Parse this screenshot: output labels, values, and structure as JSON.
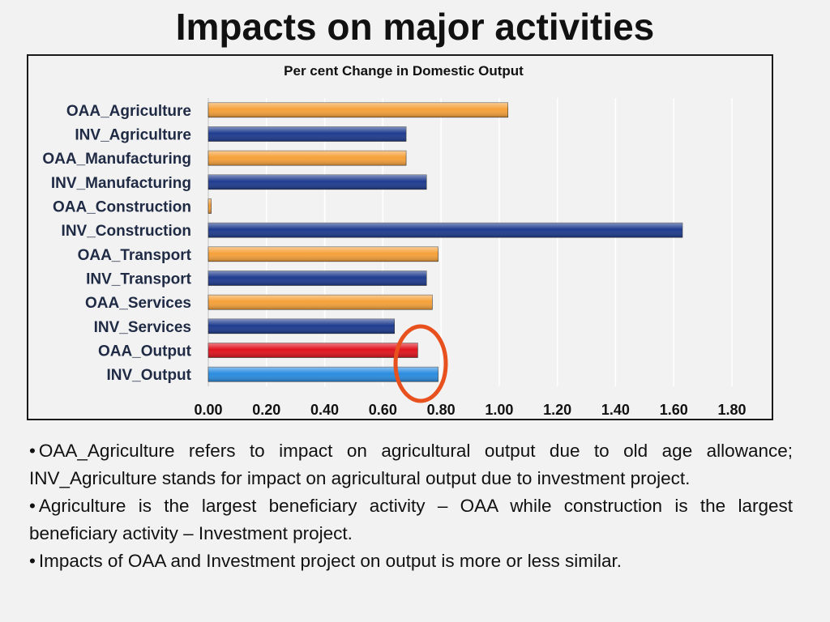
{
  "title": "Impacts on major activities",
  "chart_data": {
    "type": "bar",
    "orientation": "horizontal",
    "title": "Per cent Change in Domestic Output",
    "categories": [
      "OAA_Agriculture",
      "INV_Agriculture",
      "OAA_Manufacturing",
      "INV_Manufacturing",
      "OAA_Construction",
      "INV_Construction",
      "OAA_Transport",
      "INV_Transport",
      "OAA_Services",
      "INV_Services",
      "OAA_Output",
      "INV_Output"
    ],
    "values": [
      1.03,
      0.68,
      0.68,
      0.75,
      0.01,
      1.63,
      0.79,
      0.75,
      0.77,
      0.64,
      0.72,
      0.79
    ],
    "bar_colors": [
      "#f6a13a",
      "#1f3c8f",
      "#f6a13a",
      "#1f3c8f",
      "#f6a13a",
      "#1f3c8f",
      "#f6a13a",
      "#1f3c8f",
      "#f6a13a",
      "#1f3c8f",
      "#e0141e",
      "#2b8de0"
    ],
    "xlim": [
      0,
      1.8
    ],
    "xticks": [
      "0.00",
      "0.20",
      "0.40",
      "0.60",
      "0.80",
      "1.00",
      "1.20",
      "1.40",
      "1.60",
      "1.80"
    ],
    "grid": true,
    "annotation": {
      "shape": "ellipse",
      "color": "#e8501e",
      "near": "OAA_Output / INV_Output bar ends"
    }
  },
  "notes": [
    "OAA_Agriculture refers to impact on agricultural output due to old age allowance; INV_Agriculture stands for impact on agricultural output due to investment project.",
    "Agriculture is the largest beneficiary activity – OAA while construction is the largest beneficiary activity – Investment project.",
    "Impacts of OAA and Investment project on output is more or less similar."
  ]
}
